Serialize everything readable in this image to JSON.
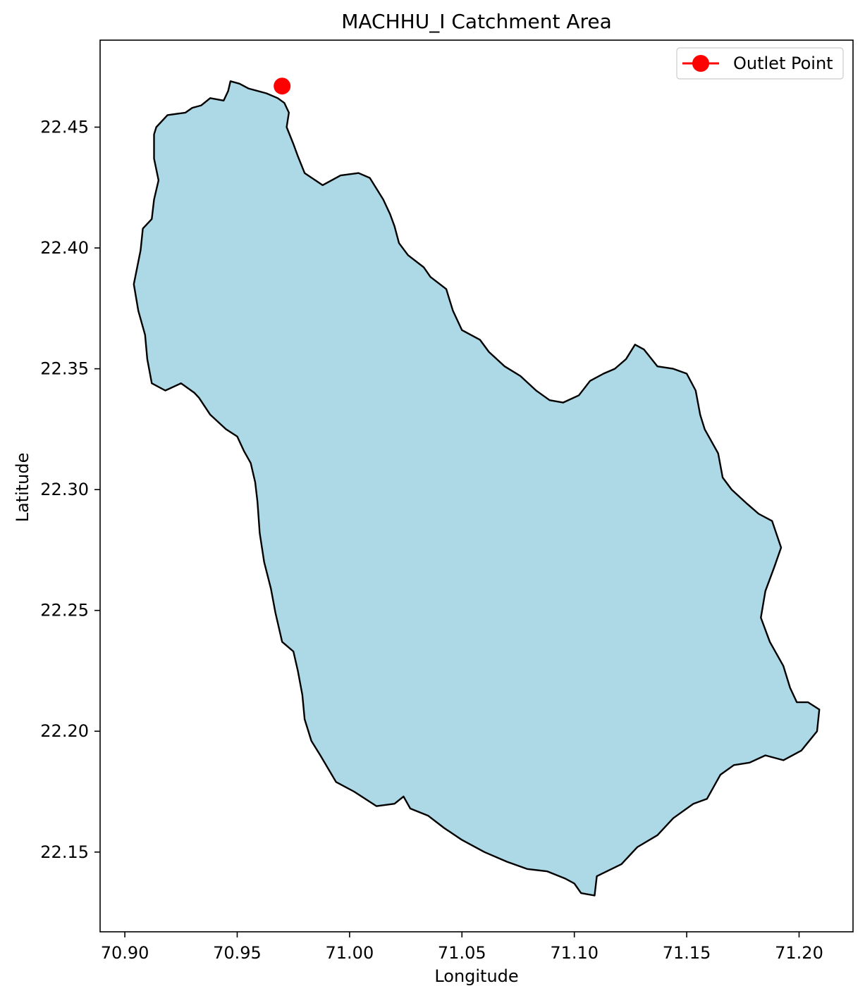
{
  "chart_data": {
    "type": "map",
    "title": "MACHHU_I Catchment Area",
    "xlabel": "Longitude",
    "ylabel": "Latitude",
    "xlim": [
      70.889,
      71.224
    ],
    "ylim": [
      22.117,
      22.486
    ],
    "xticks": [
      70.9,
      70.95,
      71.0,
      71.05,
      71.1,
      71.15,
      71.2
    ],
    "xtick_labels": [
      "70.90",
      "70.95",
      "71.00",
      "71.05",
      "71.10",
      "71.15",
      "71.20"
    ],
    "yticks": [
      22.15,
      22.2,
      22.25,
      22.3,
      22.35,
      22.4,
      22.45
    ],
    "ytick_labels": [
      "22.15",
      "22.20",
      "22.25",
      "22.30",
      "22.35",
      "22.40",
      "22.45"
    ],
    "grid": false,
    "legend": {
      "placement": "top-right",
      "entries": [
        {
          "label": "Outlet Point",
          "color": "#ff0000",
          "marker": "circle"
        }
      ]
    },
    "catchment": {
      "fill_color": "#add8e6",
      "edge_color": "#000000",
      "boundary": [
        [
          70.968,
          22.462
        ],
        [
          70.963,
          22.464
        ],
        [
          70.955,
          22.466
        ],
        [
          70.951,
          22.468
        ],
        [
          70.947,
          22.469
        ],
        [
          70.946,
          22.465
        ],
        [
          70.944,
          22.461
        ],
        [
          70.938,
          22.462
        ],
        [
          70.934,
          22.459
        ],
        [
          70.93,
          22.458
        ],
        [
          70.927,
          22.456
        ],
        [
          70.919,
          22.455
        ],
        [
          70.914,
          22.45
        ],
        [
          70.913,
          22.447
        ],
        [
          70.913,
          22.437
        ],
        [
          70.915,
          22.428
        ],
        [
          70.913,
          22.42
        ],
        [
          70.912,
          22.412
        ],
        [
          70.908,
          22.408
        ],
        [
          70.907,
          22.399
        ],
        [
          70.904,
          22.385
        ],
        [
          70.906,
          22.374
        ],
        [
          70.909,
          22.364
        ],
        [
          70.91,
          22.354
        ],
        [
          70.912,
          22.344
        ],
        [
          70.918,
          22.341
        ],
        [
          70.925,
          22.344
        ],
        [
          70.931,
          22.34
        ],
        [
          70.933,
          22.338
        ],
        [
          70.938,
          22.331
        ],
        [
          70.945,
          22.325
        ],
        [
          70.95,
          22.322
        ],
        [
          70.953,
          22.316
        ],
        [
          70.956,
          22.311
        ],
        [
          70.958,
          22.303
        ],
        [
          70.959,
          22.295
        ],
        [
          70.96,
          22.282
        ],
        [
          70.962,
          22.27
        ],
        [
          70.965,
          22.259
        ],
        [
          70.967,
          22.249
        ],
        [
          70.97,
          22.237
        ],
        [
          70.975,
          22.233
        ],
        [
          70.977,
          22.225
        ],
        [
          70.979,
          22.215
        ],
        [
          70.98,
          22.205
        ],
        [
          70.983,
          22.196
        ],
        [
          70.987,
          22.19
        ],
        [
          70.994,
          22.179
        ],
        [
          71.002,
          22.175
        ],
        [
          71.012,
          22.169
        ],
        [
          71.02,
          22.17
        ],
        [
          71.024,
          22.173
        ],
        [
          71.027,
          22.168
        ],
        [
          71.035,
          22.165
        ],
        [
          71.042,
          22.16
        ],
        [
          71.05,
          22.155
        ],
        [
          71.06,
          22.15
        ],
        [
          71.07,
          22.146
        ],
        [
          71.079,
          22.143
        ],
        [
          71.088,
          22.142
        ],
        [
          71.096,
          22.139
        ],
        [
          71.1,
          22.137
        ],
        [
          71.103,
          22.133
        ],
        [
          71.109,
          22.132
        ],
        [
          71.11,
          22.14
        ],
        [
          71.121,
          22.145
        ],
        [
          71.128,
          22.152
        ],
        [
          71.137,
          22.157
        ],
        [
          71.144,
          22.164
        ],
        [
          71.153,
          22.17
        ],
        [
          71.159,
          22.172
        ],
        [
          71.165,
          22.182
        ],
        [
          71.171,
          22.186
        ],
        [
          71.178,
          22.187
        ],
        [
          71.185,
          22.19
        ],
        [
          71.193,
          22.188
        ],
        [
          71.201,
          22.192
        ],
        [
          71.208,
          22.2
        ],
        [
          71.209,
          22.209
        ],
        [
          71.204,
          22.212
        ],
        [
          71.199,
          22.212
        ],
        [
          71.196,
          22.218
        ],
        [
          71.193,
          22.227
        ],
        [
          71.187,
          22.237
        ],
        [
          71.183,
          22.247
        ],
        [
          71.185,
          22.258
        ],
        [
          71.189,
          22.268
        ],
        [
          71.192,
          22.276
        ],
        [
          71.188,
          22.287
        ],
        [
          71.182,
          22.29
        ],
        [
          71.177,
          22.294
        ],
        [
          71.17,
          22.3
        ],
        [
          71.166,
          22.305
        ],
        [
          71.164,
          22.315
        ],
        [
          71.158,
          22.325
        ],
        [
          71.156,
          22.331
        ],
        [
          71.154,
          22.341
        ],
        [
          71.15,
          22.348
        ],
        [
          71.144,
          22.35
        ],
        [
          71.137,
          22.351
        ],
        [
          71.131,
          22.358
        ],
        [
          71.127,
          22.36
        ],
        [
          71.123,
          22.354
        ],
        [
          71.118,
          22.35
        ],
        [
          71.113,
          22.348
        ],
        [
          71.107,
          22.345
        ],
        [
          71.102,
          22.339
        ],
        [
          71.095,
          22.336
        ],
        [
          71.089,
          22.337
        ],
        [
          71.083,
          22.341
        ],
        [
          71.076,
          22.347
        ],
        [
          71.069,
          22.351
        ],
        [
          71.062,
          22.357
        ],
        [
          71.058,
          22.362
        ],
        [
          71.05,
          22.366
        ],
        [
          71.046,
          22.374
        ],
        [
          71.043,
          22.383
        ],
        [
          71.036,
          22.388
        ],
        [
          71.033,
          22.392
        ],
        [
          71.026,
          22.397
        ],
        [
          71.022,
          22.402
        ],
        [
          71.02,
          22.409
        ],
        [
          71.018,
          22.414
        ],
        [
          71.015,
          22.42
        ],
        [
          71.009,
          22.429
        ],
        [
          71.004,
          22.431
        ],
        [
          70.996,
          22.43
        ],
        [
          70.988,
          22.426
        ],
        [
          70.98,
          22.431
        ],
        [
          70.977,
          22.438
        ],
        [
          70.975,
          22.443
        ],
        [
          70.972,
          22.45
        ],
        [
          70.973,
          22.456
        ],
        [
          70.971,
          22.46
        ]
      ]
    },
    "outlet_point": {
      "x": 70.97,
      "y": 22.467,
      "color": "#ff0000"
    }
  }
}
